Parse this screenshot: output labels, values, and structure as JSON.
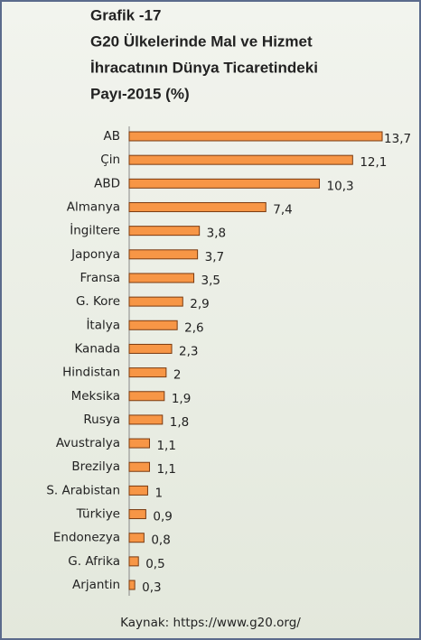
{
  "chart_data": {
    "type": "hbar",
    "title": [
      "Grafik -17",
      "G20 Ülkelerinde Mal ve Hizmet",
      "İhracatının Dünya Ticaretindeki",
      "Payı-2015 (%)"
    ],
    "categories": [
      "AB",
      "Çin",
      "ABD",
      "Almanya",
      "İngiltere",
      "Japonya",
      "Fransa",
      "G. Kore",
      "İtalya",
      "Kanada",
      "Hindistan",
      "Meksika",
      "Rusya",
      "Avustralya",
      "Brezilya",
      "S. Arabistan",
      "Türkiye",
      "Endonezya",
      "G. Afrika",
      "Arjantin"
    ],
    "values": [
      13.7,
      12.1,
      10.3,
      7.4,
      3.8,
      3.7,
      3.5,
      2.9,
      2.6,
      2.3,
      2,
      1.9,
      1.8,
      1.1,
      1.1,
      1,
      0.9,
      0.8,
      0.5,
      0.3
    ],
    "value_labels": [
      "13,7",
      "12,1",
      "10,3",
      "7,4",
      "3,8",
      "3,7",
      "3,5",
      "2,9",
      "2,6",
      "2,3",
      "2",
      "1,9",
      "1,8",
      "1,1",
      "1,1",
      "1",
      "0,9",
      "0,8",
      "0,5",
      "0,3"
    ],
    "color": "#f79646",
    "source": "Kaynak: https://www.g20.org/"
  }
}
